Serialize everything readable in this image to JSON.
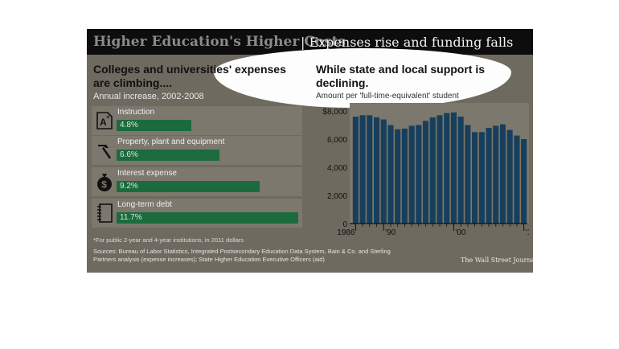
{
  "header": {
    "title_main": "Higher Education's Higher Costs",
    "title_sub": "| Expenses rise and funding falls"
  },
  "left": {
    "heading": "Colleges and universities' expenses are climbing....",
    "subheading": "Annual increase, 2002-2008"
  },
  "right": {
    "heading": "While state and local support is declining.",
    "subheading": "Amount per 'full-time-equivalent' student"
  },
  "footnote": "*For public 2-year and 4-year institutions, in 2011 dollars",
  "sources": "Sources: Bureau of Labor Statistics, Integrated Postsecondary Education Data System, Bain & Co. and Sterling Partners analysis (expense increases); State Higher Education Executive Officers (aid)",
  "credit": "The Wall Street Journal",
  "colors": {
    "bar_green": "#1b6b3e",
    "bar_blue": "#173f5c",
    "panel": "#6e6a60"
  },
  "chart_data": [
    {
      "type": "bar",
      "orientation": "horizontal",
      "categories": [
        "Instruction",
        "Property, plant and equipment",
        "Interest expense",
        "Long-term debt"
      ],
      "values": [
        4.8,
        6.6,
        9.2,
        11.7
      ],
      "value_labels": [
        "4.8%",
        "6.6%",
        "9.2%",
        "11.7%"
      ],
      "icons": [
        "grade-a-plus-icon",
        "hammer-icon",
        "money-bag-icon",
        "notebook-icon"
      ]
    },
    {
      "type": "bar",
      "x": [
        1986,
        1987,
        1988,
        1989,
        1990,
        1991,
        1992,
        1993,
        1994,
        1995,
        1996,
        1997,
        1998,
        1999,
        2000,
        2001,
        2002,
        2003,
        2004,
        2005,
        2006,
        2007,
        2008,
        2009,
        2010
      ],
      "values": [
        7600,
        7700,
        7700,
        7550,
        7400,
        7000,
        6700,
        6750,
        6950,
        7000,
        7300,
        7550,
        7700,
        7850,
        7900,
        7600,
        7000,
        6500,
        6500,
        6800,
        6950,
        7050,
        6650,
        6250,
        6000
      ],
      "ylim": [
        0,
        8000
      ],
      "yticks": [
        0,
        2000,
        4000,
        6000,
        8000
      ],
      "ytick_labels": [
        "0",
        "2,000",
        "4,000",
        "6,000",
        "$8,000"
      ],
      "xtick_labels": [
        "1986",
        "'90",
        "'00",
        "'10"
      ],
      "xtick_years": [
        1986,
        1990,
        2000,
        2010
      ],
      "grid": false
    }
  ]
}
